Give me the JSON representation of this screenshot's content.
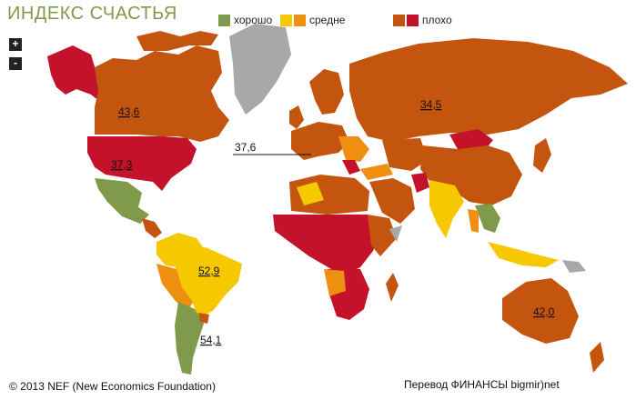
{
  "title": "ИНДЕКС СЧАСТЬЯ",
  "legend": [
    {
      "label": "хорошо",
      "colors": [
        "#7e9a4a"
      ]
    },
    {
      "label": "средне",
      "colors": [
        "#f5c800",
        "#ee8f12"
      ]
    },
    {
      "label": "плохо",
      "colors": [
        "#c4550f",
        "#c4122b"
      ]
    }
  ],
  "zoom": {
    "in_label": "+",
    "out_label": "-"
  },
  "map_labels": [
    {
      "name": "canada",
      "text": "43,6"
    },
    {
      "name": "usa",
      "text": "37,3"
    },
    {
      "name": "europe",
      "text": "37,6"
    },
    {
      "name": "russia",
      "text": "34,5"
    },
    {
      "name": "brazil",
      "text": "52,9"
    },
    {
      "name": "argentina",
      "text": "54,1"
    },
    {
      "name": "australia",
      "text": "42,0"
    }
  ],
  "footer": {
    "copyright": "© 2013 NEF (New Economics Foundation)",
    "translation": "Перевод ФИНАНСЫ bigmir)net"
  },
  "colors": {
    "good": "#7e9a4a",
    "medium_yellow": "#f5c800",
    "medium_orange": "#ee8f12",
    "bad_brown": "#c4550f",
    "bad_red": "#c4122b",
    "no_data": "#a8a8a8",
    "title": "#7e9a4a"
  }
}
